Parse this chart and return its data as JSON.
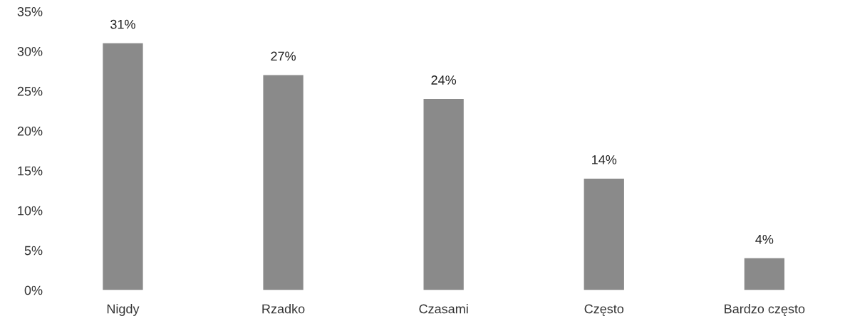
{
  "chart_data": {
    "type": "bar",
    "categories": [
      "Nigdy",
      "Rzadko",
      "Czasami",
      "Często",
      "Bardzo często"
    ],
    "values": [
      31,
      27,
      24,
      14,
      4
    ],
    "value_labels": [
      "31%",
      "27%",
      "24%",
      "14%",
      "4%"
    ],
    "color": "#8a8a8a",
    "ylim": [
      0,
      35
    ],
    "yticks": [
      {
        "value": 0,
        "label": "0%"
      },
      {
        "value": 5,
        "label": "5%"
      },
      {
        "value": 10,
        "label": "10%"
      },
      {
        "value": 15,
        "label": "15%"
      },
      {
        "value": 20,
        "label": "20%"
      },
      {
        "value": 25,
        "label": "25%"
      },
      {
        "value": 30,
        "label": "30%"
      },
      {
        "value": 35,
        "label": "35%"
      }
    ],
    "grid": false,
    "legend": false
  }
}
